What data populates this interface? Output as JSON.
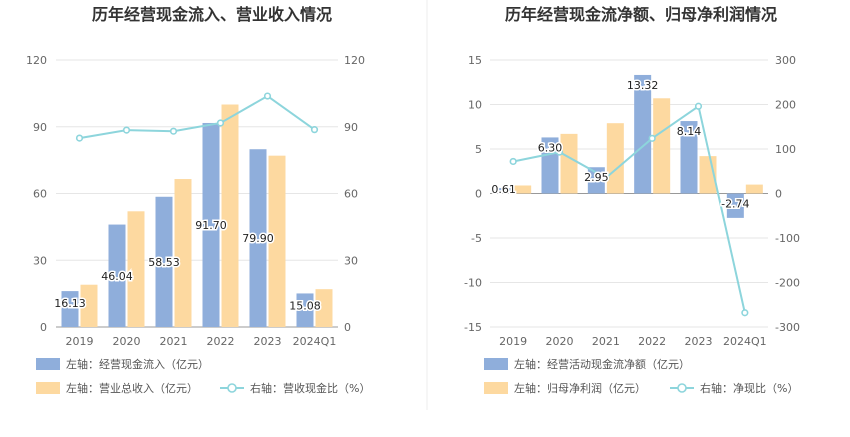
{
  "chart_data": [
    {
      "type": "bar",
      "title": "历年经营现金流入、营业收入情况",
      "categories": [
        "2019",
        "2020",
        "2021",
        "2022",
        "2023",
        "2024Q1"
      ],
      "ylim_left": [
        0,
        120
      ],
      "ylim_right": [
        0,
        120
      ],
      "left_ticks": [
        "0",
        "30",
        "60",
        "90",
        "120"
      ],
      "right_ticks": [
        "0",
        "30",
        "60",
        "90",
        "120"
      ],
      "series": [
        {
          "name": "左轴：经营现金流入（亿元）",
          "kind": "bar",
          "axis": "left",
          "color": "#8faedb",
          "values": [
            16.13,
            46.04,
            58.53,
            91.7,
            79.9,
            15.08
          ],
          "labels": [
            "16.13",
            "46.04",
            "58.53",
            "91.70",
            "79.90",
            "15.08"
          ]
        },
        {
          "name": "左轴：营业总收入（亿元）",
          "kind": "bar",
          "axis": "left",
          "color": "#fdd9a0",
          "values": [
            19.0,
            52.0,
            66.5,
            100.0,
            77.0,
            17.0
          ]
        },
        {
          "name": "右轴：营收现金比（%）",
          "kind": "line",
          "axis": "right",
          "color": "#8dd5dc",
          "values": [
            84.9,
            88.5,
            88.0,
            91.7,
            103.8,
            88.7
          ]
        }
      ],
      "grid": true,
      "legend_position": "bottom-left"
    },
    {
      "type": "bar",
      "title": "历年经营现金流净额、归母净利润情况",
      "categories": [
        "2019",
        "2020",
        "2021",
        "2022",
        "2023",
        "2024Q1"
      ],
      "ylim_left": [
        -15,
        15
      ],
      "ylim_right": [
        -300,
        300
      ],
      "left_ticks": [
        "-15",
        "-10",
        "-5",
        "0",
        "5",
        "10",
        "15"
      ],
      "right_ticks": [
        "-300",
        "-200",
        "-100",
        "0",
        "100",
        "200",
        "300"
      ],
      "series": [
        {
          "name": "左轴：经营活动现金流净额（亿元）",
          "kind": "bar",
          "axis": "left",
          "color": "#8faedb",
          "values": [
            0.61,
            6.3,
            2.95,
            13.32,
            8.14,
            -2.74
          ],
          "labels": [
            "0.61",
            "6.30",
            "2.95",
            "13.32",
            "8.14",
            "-2.74"
          ]
        },
        {
          "name": "左轴：归母净利润（亿元）",
          "kind": "bar",
          "axis": "left",
          "color": "#fdd9a0",
          "values": [
            0.9,
            6.7,
            7.9,
            10.7,
            4.2,
            1.0
          ]
        },
        {
          "name": "右轴：净现比（%）",
          "kind": "line",
          "axis": "right",
          "color": "#8dd5dc",
          "values": [
            72,
            93,
            35,
            124,
            196,
            -268
          ]
        }
      ],
      "grid": true,
      "legend_position": "bottom-left"
    }
  ]
}
